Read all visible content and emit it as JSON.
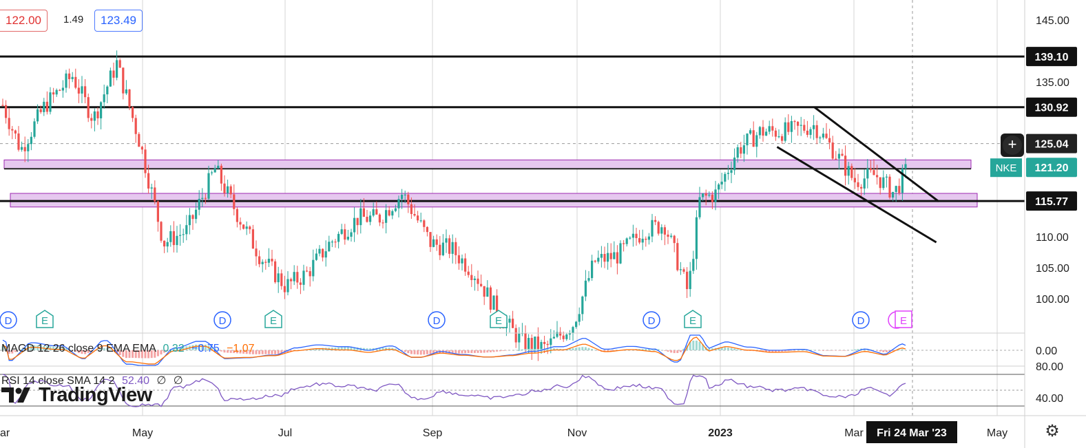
{
  "header": {
    "bid": "122.00",
    "spread": "1.49",
    "ask": "123.49"
  },
  "price_scale": {
    "ticks": [
      "145.00",
      "135.00",
      "110.00",
      "105.00",
      "100.00",
      "0.00",
      "80.00",
      "40.00"
    ],
    "labels": {
      "resistance_high": "139.10",
      "resistance_mid": "130.92",
      "dashed_level": "125.04",
      "symbol": "NKE",
      "last_price": "121.20",
      "support": "115.77"
    }
  },
  "time_axis": {
    "ticks": [
      "ar",
      "May",
      "Jul",
      "Sep",
      "Nov",
      "2023",
      "Mar",
      "May"
    ],
    "crosshair_label": "Fri 24 Mar '23"
  },
  "events": {
    "dividend": "D",
    "earnings": "E"
  },
  "indicators": {
    "macd": {
      "label": "MAGD 12 26 close 9 EMA EMA",
      "v1": "0.32",
      "v2": "−0.75",
      "v3": "−1.07"
    },
    "rsi": {
      "label": "RSI 14 close SMA 14 2",
      "v1": "52.40",
      "v2": "∅",
      "v3": "∅"
    }
  },
  "branding": {
    "logo": "TradingView"
  },
  "colors": {
    "up": "#26a69a",
    "down": "#ef5350",
    "zone_fill": "#e6c8ef",
    "zone_border": "#9c27b0",
    "macd_line": "#2962ff",
    "signal_line": "#ff6d00",
    "rsi_line": "#7e57c2",
    "symbol_badge": "#26a69a",
    "earnings_pending": "#e040fb"
  },
  "chart_data": {
    "type": "candlestick",
    "symbol": "NKE",
    "y_range": [
      96,
      147
    ],
    "horizontal_levels": [
      139.1,
      130.92,
      115.77
    ],
    "dashed_level": 125.04,
    "last_price": 121.2,
    "zones": [
      [
        121.0,
        122.4
      ],
      [
        114.8,
        117.0
      ]
    ],
    "channel": {
      "upper": [
        [
          "2023-02-12",
          130.9
        ],
        [
          "2023-04-06",
          115.7
        ]
      ],
      "lower": [
        [
          "2023-01-27",
          124.5
        ],
        [
          "2023-04-05",
          109.1
        ]
      ]
    },
    "months": [
      "2022-03",
      "2022-04",
      "2022-05",
      "2022-06",
      "2022-07",
      "2022-08",
      "2022-09",
      "2022-10",
      "2022-11",
      "2022-12",
      "2023-01",
      "2023-02",
      "2023-03",
      "2023-04",
      "2023-05"
    ],
    "monthly_close_path": [
      [
        "2022-03-01",
        132.5
      ],
      [
        "2022-03-10",
        124
      ],
      [
        "2022-03-20",
        131
      ],
      [
        "2022-04-01",
        136
      ],
      [
        "2022-04-10",
        129
      ],
      [
        "2022-04-20",
        138
      ],
      [
        "2022-04-30",
        125
      ],
      [
        "2022-05-10",
        109
      ],
      [
        "2022-05-20",
        111
      ],
      [
        "2022-06-01",
        121
      ],
      [
        "2022-06-10",
        114
      ],
      [
        "2022-06-20",
        107
      ],
      [
        "2022-07-01",
        102
      ],
      [
        "2022-07-10",
        104
      ],
      [
        "2022-07-20",
        109
      ],
      [
        "2022-08-01",
        113
      ],
      [
        "2022-08-10",
        113
      ],
      [
        "2022-08-20",
        117
      ],
      [
        "2022-09-01",
        109
      ],
      [
        "2022-09-10",
        108
      ],
      [
        "2022-09-20",
        104
      ],
      [
        "2022-10-01",
        97
      ],
      [
        "2022-10-10",
        93
      ],
      [
        "2022-10-20",
        92
      ],
      [
        "2022-11-01",
        96
      ],
      [
        "2022-11-10",
        106
      ],
      [
        "2022-11-20",
        107
      ],
      [
        "2022-12-01",
        111
      ],
      [
        "2022-12-10",
        112
      ],
      [
        "2022-12-20",
        101
      ],
      [
        "2022-12-25",
        116
      ],
      [
        "2023-01-01",
        117
      ],
      [
        "2023-01-10",
        124
      ],
      [
        "2023-01-20",
        127
      ],
      [
        "2023-02-01",
        127
      ],
      [
        "2023-02-12",
        128
      ],
      [
        "2023-02-20",
        124
      ],
      [
        "2023-03-01",
        119
      ],
      [
        "2023-03-10",
        120
      ],
      [
        "2023-03-18",
        117
      ],
      [
        "2023-03-24",
        121.2
      ]
    ],
    "macd": {
      "values": [
        0.32,
        -0.75,
        -1.07
      ]
    },
    "rsi": {
      "value": 52.4,
      "bands": [
        70,
        30
      ],
      "ticks": [
        80,
        40
      ]
    }
  }
}
